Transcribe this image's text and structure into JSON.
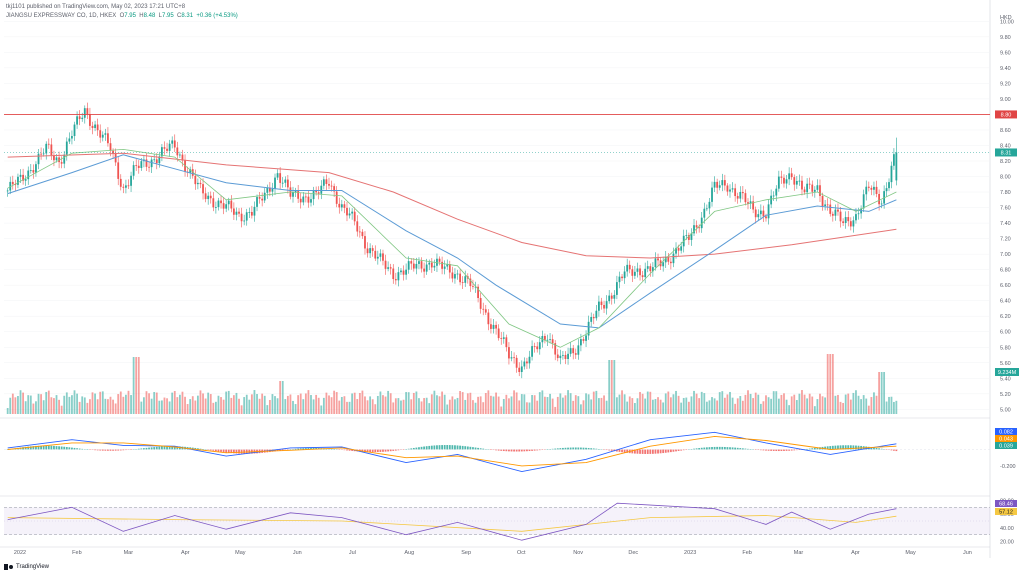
{
  "header": {
    "publisher_line": "tkj1101 published on TradingView.com, May 02, 2023 17:21 UTC+8",
    "symbol": "JIANGSU EXPRESSWAY CO, 1D, HKEX",
    "ohlc": {
      "o_label": "O",
      "o": "7.95",
      "h_label": "H",
      "h": "8.48",
      "l_label": "L",
      "l": "7.95",
      "c_label": "C",
      "c": "8.31",
      "change": "+0.36 (+4.53%)"
    }
  },
  "footer": {
    "logo_text": "TradingView"
  },
  "colors": {
    "up": "#26a69a",
    "down": "#ef5350",
    "ma_short": "#f2a65a",
    "ma_green": "#81c784",
    "ma_blue": "#5b9bd5",
    "ma_red": "#e57373",
    "hline": "#e04545",
    "macd_line": "#2962ff",
    "signal_line": "#ff9800",
    "rsi_line": "#7e57c2",
    "rsi_ma": "#f5c842"
  },
  "chart_data": {
    "type": "candlestick",
    "currency": "HKD",
    "x_ticks": [
      "2022",
      "Feb",
      "Mar",
      "Apr",
      "May",
      "Jun",
      "Jul",
      "Aug",
      "Sep",
      "Oct",
      "Nov",
      "Dec",
      "2023",
      "Feb",
      "Mar",
      "Apr",
      "May",
      "Jun"
    ],
    "y_ticks": [
      "10.00",
      "9.80",
      "9.60",
      "9.40",
      "9.20",
      "9.00",
      "8.80",
      "8.60",
      "8.40",
      "8.20",
      "8.00",
      "7.80",
      "7.60",
      "7.40",
      "7.20",
      "7.00",
      "6.80",
      "6.60",
      "6.40",
      "6.20",
      "6.00",
      "5.80",
      "5.60",
      "5.40",
      "5.20",
      "5.00"
    ],
    "y_range": [
      4.94,
      10.12
    ],
    "price_path": [
      [
        "2022-01-03",
        7.82
      ],
      [
        "2022-01-10",
        7.95
      ],
      [
        "2022-01-17",
        8.15
      ],
      [
        "2022-01-24",
        8.35
      ],
      [
        "2022-01-31",
        8.2
      ],
      [
        "2022-02-07",
        8.55
      ],
      [
        "2022-02-14",
        8.85
      ],
      [
        "2022-02-21",
        8.6
      ],
      [
        "2022-02-28",
        8.35
      ],
      [
        "2022-03-07",
        7.85
      ],
      [
        "2022-03-14",
        8.1
      ],
      [
        "2022-03-21",
        8.2
      ],
      [
        "2022-03-28",
        8.3
      ],
      [
        "2022-04-04",
        8.4
      ],
      [
        "2022-04-11",
        8.1
      ],
      [
        "2022-04-18",
        7.8
      ],
      [
        "2022-04-25",
        7.7
      ],
      [
        "2022-05-02",
        7.6
      ],
      [
        "2022-05-09",
        7.5
      ],
      [
        "2022-05-16",
        7.55
      ],
      [
        "2022-05-23",
        7.75
      ],
      [
        "2022-05-30",
        8.05
      ],
      [
        "2022-06-06",
        7.75
      ],
      [
        "2022-06-13",
        7.75
      ],
      [
        "2022-06-20",
        7.75
      ],
      [
        "2022-06-27",
        7.95
      ],
      [
        "2022-07-04",
        7.6
      ],
      [
        "2022-07-11",
        7.4
      ],
      [
        "2022-07-18",
        7.1
      ],
      [
        "2022-07-25",
        6.9
      ],
      [
        "2022-08-01",
        6.75
      ],
      [
        "2022-08-08",
        6.8
      ],
      [
        "2022-08-15",
        6.85
      ],
      [
        "2022-08-22",
        6.9
      ],
      [
        "2022-08-29",
        6.8
      ],
      [
        "2022-09-05",
        6.75
      ],
      [
        "2022-09-12",
        6.6
      ],
      [
        "2022-09-19",
        6.3
      ],
      [
        "2022-09-26",
        6.0
      ],
      [
        "2022-10-03",
        5.7
      ],
      [
        "2022-10-10",
        5.55
      ],
      [
        "2022-10-17",
        5.75
      ],
      [
        "2022-10-24",
        6.0
      ],
      [
        "2022-10-31",
        5.6
      ],
      [
        "2022-11-07",
        5.75
      ],
      [
        "2022-11-14",
        6.0
      ],
      [
        "2022-11-21",
        6.3
      ],
      [
        "2022-11-28",
        6.5
      ],
      [
        "2022-12-05",
        6.75
      ],
      [
        "2022-12-12",
        6.8
      ],
      [
        "2022-12-19",
        6.8
      ],
      [
        "2022-12-26",
        6.9
      ],
      [
        "2023-01-02",
        7.05
      ],
      [
        "2023-01-09",
        7.2
      ],
      [
        "2023-01-16",
        7.5
      ],
      [
        "2023-01-23",
        7.85
      ],
      [
        "2023-01-30",
        7.9
      ],
      [
        "2023-02-06",
        7.75
      ],
      [
        "2023-02-13",
        7.55
      ],
      [
        "2023-02-20",
        7.55
      ],
      [
        "2023-02-27",
        7.9
      ],
      [
        "2023-03-06",
        8.05
      ],
      [
        "2023-03-13",
        7.8
      ],
      [
        "2023-03-20",
        7.85
      ],
      [
        "2023-03-27",
        7.55
      ],
      [
        "2023-04-03",
        7.4
      ],
      [
        "2023-04-10",
        7.5
      ],
      [
        "2023-04-17",
        7.85
      ],
      [
        "2023-04-24",
        7.7
      ],
      [
        "2023-05-02",
        8.31
      ]
    ],
    "ma_red_path": [
      [
        "2022-01-03",
        8.25
      ],
      [
        "2022-03-07",
        8.3
      ],
      [
        "2022-05-02",
        8.15
      ],
      [
        "2022-06-27",
        8.05
      ],
      [
        "2022-08-01",
        7.8
      ],
      [
        "2022-09-05",
        7.45
      ],
      [
        "2022-10-10",
        7.15
      ],
      [
        "2022-11-14",
        6.98
      ],
      [
        "2022-12-19",
        6.95
      ],
      [
        "2023-01-23",
        7.0
      ],
      [
        "2023-03-06",
        7.12
      ],
      [
        "2023-05-02",
        7.32
      ]
    ],
    "ma_blue_path": [
      [
        "2022-01-03",
        7.78
      ],
      [
        "2022-02-07",
        8.05
      ],
      [
        "2022-03-07",
        8.28
      ],
      [
        "2022-04-04",
        8.1
      ],
      [
        "2022-05-02",
        7.92
      ],
      [
        "2022-06-06",
        7.82
      ],
      [
        "2022-07-04",
        7.82
      ],
      [
        "2022-08-08",
        7.3
      ],
      [
        "2022-09-05",
        6.95
      ],
      [
        "2022-09-26",
        6.6
      ],
      [
        "2022-10-31",
        6.1
      ],
      [
        "2022-11-21",
        6.05
      ],
      [
        "2022-12-19",
        6.5
      ],
      [
        "2023-01-23",
        7.05
      ],
      [
        "2023-02-20",
        7.5
      ],
      [
        "2023-03-20",
        7.62
      ],
      [
        "2023-04-17",
        7.55
      ],
      [
        "2023-05-02",
        7.7
      ]
    ],
    "ma_green_path": [
      [
        "2022-01-03",
        7.85
      ],
      [
        "2022-02-07",
        8.3
      ],
      [
        "2022-03-07",
        8.35
      ],
      [
        "2022-04-04",
        8.25
      ],
      [
        "2022-05-02",
        7.7
      ],
      [
        "2022-06-06",
        7.8
      ],
      [
        "2022-07-04",
        7.75
      ],
      [
        "2022-08-08",
        6.95
      ],
      [
        "2022-09-05",
        6.85
      ],
      [
        "2022-10-03",
        6.1
      ],
      [
        "2022-10-31",
        5.8
      ],
      [
        "2022-11-21",
        6.05
      ],
      [
        "2022-12-19",
        6.75
      ],
      [
        "2023-01-23",
        7.55
      ],
      [
        "2023-02-20",
        7.7
      ],
      [
        "2023-03-20",
        7.8
      ],
      [
        "2023-04-10",
        7.55
      ],
      [
        "2023-05-02",
        7.8
      ]
    ],
    "horizontal_line": 8.8,
    "last_price": 8.31,
    "last_price_label": "8.31",
    "hline_label": "8.80",
    "volume_label": "9.234M",
    "volume_spikes": [
      [
        "2022-03-14",
        0.95
      ],
      [
        "2022-06-01",
        0.55
      ],
      [
        "2022-11-28",
        0.9
      ],
      [
        "2023-03-27",
        1.0
      ],
      [
        "2023-04-24",
        0.7
      ]
    ],
    "macd": {
      "y_ticks": [
        "-0.200"
      ],
      "labels": [
        "0.082",
        "0.043",
        "0.039"
      ],
      "macd_path": [
        [
          "2022-01-03",
          0.02
        ],
        [
          "2022-02-07",
          0.12
        ],
        [
          "2022-03-07",
          0.05
        ],
        [
          "2022-04-04",
          0.04
        ],
        [
          "2022-05-02",
          -0.08
        ],
        [
          "2022-06-06",
          0.02
        ],
        [
          "2022-07-04",
          0.03
        ],
        [
          "2022-08-08",
          -0.16
        ],
        [
          "2022-09-05",
          -0.06
        ],
        [
          "2022-10-10",
          -0.27
        ],
        [
          "2022-11-14",
          -0.12
        ],
        [
          "2022-12-19",
          0.12
        ],
        [
          "2023-01-23",
          0.21
        ],
        [
          "2023-02-20",
          0.08
        ],
        [
          "2023-03-27",
          -0.06
        ],
        [
          "2023-05-02",
          0.07
        ]
      ],
      "signal_path": [
        [
          "2022-01-03",
          0.0
        ],
        [
          "2022-02-07",
          0.08
        ],
        [
          "2022-03-07",
          0.08
        ],
        [
          "2022-04-04",
          0.03
        ],
        [
          "2022-05-02",
          -0.04
        ],
        [
          "2022-06-06",
          -0.01
        ],
        [
          "2022-07-04",
          0.02
        ],
        [
          "2022-08-08",
          -0.1
        ],
        [
          "2022-09-05",
          -0.08
        ],
        [
          "2022-10-10",
          -0.2
        ],
        [
          "2022-11-14",
          -0.16
        ],
        [
          "2022-12-19",
          0.04
        ],
        [
          "2023-01-23",
          0.16
        ],
        [
          "2023-02-20",
          0.11
        ],
        [
          "2023-03-27",
          0.0
        ],
        [
          "2023-05-02",
          0.04
        ]
      ]
    },
    "rsi": {
      "y_ticks": [
        "80.00",
        "60.00",
        "40.00",
        "20.00"
      ],
      "labels": [
        "68.46",
        "57.12"
      ],
      "overbought": 70,
      "oversold": 30,
      "rsi_path": [
        [
          "2022-01-03",
          52
        ],
        [
          "2022-02-07",
          70
        ],
        [
          "2022-03-07",
          35
        ],
        [
          "2022-04-04",
          58
        ],
        [
          "2022-05-02",
          38
        ],
        [
          "2022-06-06",
          62
        ],
        [
          "2022-07-04",
          55
        ],
        [
          "2022-08-08",
          30
        ],
        [
          "2022-09-05",
          48
        ],
        [
          "2022-10-10",
          22
        ],
        [
          "2022-11-14",
          45
        ],
        [
          "2022-12-01",
          76
        ],
        [
          "2023-01-23",
          68
        ],
        [
          "2023-02-20",
          45
        ],
        [
          "2023-03-06",
          63
        ],
        [
          "2023-03-27",
          38
        ],
        [
          "2023-04-17",
          60
        ],
        [
          "2023-05-02",
          68
        ]
      ],
      "rsi_ma_path": [
        [
          "2022-01-03",
          55
        ],
        [
          "2022-04-04",
          52
        ],
        [
          "2022-07-04",
          50
        ],
        [
          "2022-10-10",
          35
        ],
        [
          "2022-12-19",
          55
        ],
        [
          "2023-02-20",
          58
        ],
        [
          "2023-04-10",
          48
        ],
        [
          "2023-05-02",
          57
        ]
      ]
    }
  }
}
